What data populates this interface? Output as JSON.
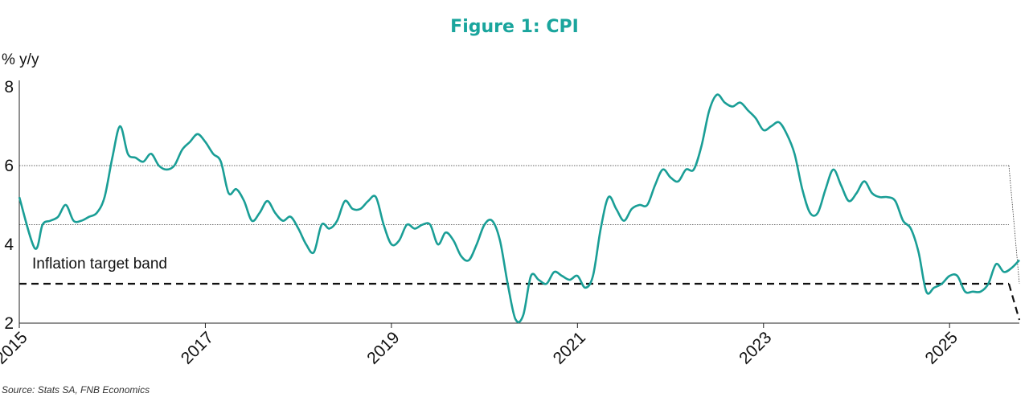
{
  "colors": {
    "line": "#1a9e96",
    "title": "#1aa59d",
    "axis": "#222222",
    "band": "#111111"
  },
  "chart_data": {
    "type": "line",
    "title": "Figure 1: CPI",
    "ylabel": "% y/y",
    "xlabel": "",
    "ylim": [
      2,
      8
    ],
    "y_ticks": [
      "2",
      "4",
      "6",
      "8"
    ],
    "x_ticks": [
      "2015",
      "2017",
      "2019",
      "2021",
      "2023",
      "2025"
    ],
    "xlim": [
      "2015-01",
      "2025-10"
    ],
    "annotation": "Inflation target band",
    "source": "Source: Stats SA, FNB Economics",
    "target_band": {
      "lower": 3.0,
      "upper": 6.0,
      "midpoint": 4.5
    },
    "series": [
      {
        "x": [
          "2015-01",
          "2015-03",
          "2015-04",
          "2015-05",
          "2015-06",
          "2015-07",
          "2015-08",
          "2015-09",
          "2015-10",
          "2015-11",
          "2015-12",
          "2016-01",
          "2016-02",
          "2016-03",
          "2016-04",
          "2016-05",
          "2016-06",
          "2016-07",
          "2016-08",
          "2016-09",
          "2016-10",
          "2016-11",
          "2016-12",
          "2017-01",
          "2017-02",
          "2017-03",
          "2017-04",
          "2017-05",
          "2017-06",
          "2017-07",
          "2017-08",
          "2017-09",
          "2017-10",
          "2017-11",
          "2017-12",
          "2018-01",
          "2018-02",
          "2018-03",
          "2018-04",
          "2018-05",
          "2018-06",
          "2018-07",
          "2018-08",
          "2018-09",
          "2018-10",
          "2018-11",
          "2018-12",
          "2019-01",
          "2019-02",
          "2019-03",
          "2019-04",
          "2019-05",
          "2019-06",
          "2019-07",
          "2019-08",
          "2019-09",
          "2019-10",
          "2019-11",
          "2019-12",
          "2020-01",
          "2020-02",
          "2020-03",
          "2020-04",
          "2020-05",
          "2020-06",
          "2020-07",
          "2020-08",
          "2020-09",
          "2020-10",
          "2020-11",
          "2020-12",
          "2021-01",
          "2021-02",
          "2021-03",
          "2021-04",
          "2021-05",
          "2021-06",
          "2021-07",
          "2021-08",
          "2021-09",
          "2021-10",
          "2021-11",
          "2021-12",
          "2022-01",
          "2022-02",
          "2022-03",
          "2022-04",
          "2022-05",
          "2022-06",
          "2022-07",
          "2022-08",
          "2022-09",
          "2022-10",
          "2022-11",
          "2022-12",
          "2023-01",
          "2023-02",
          "2023-03",
          "2023-04",
          "2023-05",
          "2023-06",
          "2023-07",
          "2023-08",
          "2023-09",
          "2023-10",
          "2023-11",
          "2023-12",
          "2024-01",
          "2024-02",
          "2024-03",
          "2024-04",
          "2024-05",
          "2024-06",
          "2024-07",
          "2024-08",
          "2024-09",
          "2024-10",
          "2024-11",
          "2024-12",
          "2025-01",
          "2025-02",
          "2025-03",
          "2025-04",
          "2025-05",
          "2025-06",
          "2025-07",
          "2025-08",
          "2025-09",
          "2025-10"
        ],
        "values": [
          5.2,
          3.9,
          4.5,
          4.6,
          4.7,
          5.0,
          4.6,
          4.6,
          4.7,
          4.8,
          5.2,
          6.2,
          7.0,
          6.3,
          6.2,
          6.1,
          6.3,
          6.0,
          5.9,
          6.0,
          6.4,
          6.6,
          6.8,
          6.6,
          6.3,
          6.1,
          5.3,
          5.4,
          5.1,
          4.6,
          4.8,
          5.1,
          4.8,
          4.6,
          4.7,
          4.4,
          4.0,
          3.8,
          4.5,
          4.4,
          4.6,
          5.1,
          4.9,
          4.9,
          5.1,
          5.2,
          4.5,
          4.0,
          4.1,
          4.5,
          4.4,
          4.5,
          4.5,
          4.0,
          4.3,
          4.1,
          3.7,
          3.6,
          4.0,
          4.5,
          4.6,
          4.1,
          3.0,
          2.1,
          2.2,
          3.2,
          3.1,
          3.0,
          3.3,
          3.2,
          3.1,
          3.2,
          2.9,
          3.2,
          4.4,
          5.2,
          4.9,
          4.6,
          4.9,
          5.0,
          5.0,
          5.5,
          5.9,
          5.7,
          5.6,
          5.9,
          5.9,
          6.5,
          7.4,
          7.8,
          7.6,
          7.5,
          7.6,
          7.4,
          7.2,
          6.9,
          7.0,
          7.1,
          6.8,
          6.3,
          5.4,
          4.8,
          4.8,
          5.4,
          5.9,
          5.5,
          5.1,
          5.3,
          5.6,
          5.3,
          5.2,
          5.2,
          5.1,
          4.6,
          4.4,
          3.8,
          2.8,
          2.9,
          3.0,
          3.2,
          3.2,
          2.8,
          2.8,
          2.8,
          3.0,
          3.5,
          3.3,
          3.4,
          3.6
        ]
      }
    ]
  }
}
